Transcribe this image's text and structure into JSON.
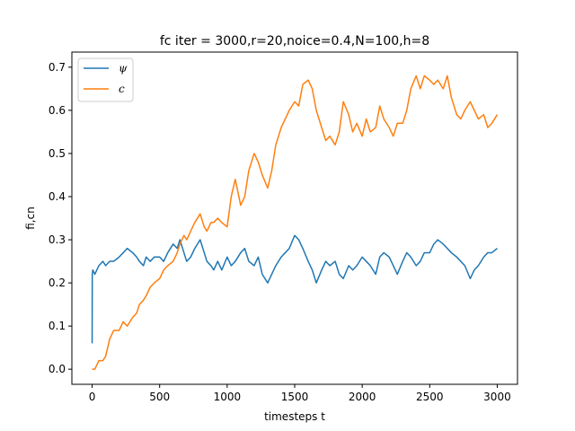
{
  "chart_data": {
    "type": "line",
    "title": "fc iter = 3000,r=20,noice=0.4,N=100,h=8",
    "xlabel": "timesteps t",
    "ylabel": "fi,cn",
    "xlim": [
      -150,
      3150
    ],
    "ylim": [
      -0.035,
      0.735
    ],
    "xticks": [
      0,
      500,
      1000,
      1500,
      2000,
      2500,
      3000
    ],
    "yticks": [
      0.0,
      0.1,
      0.2,
      0.3,
      0.4,
      0.5,
      0.6,
      0.7
    ],
    "xtick_labels": [
      "0",
      "500",
      "1000",
      "1500",
      "2000",
      "2500",
      "3000"
    ],
    "ytick_labels": [
      "0.0",
      "0.1",
      "0.2",
      "0.3",
      "0.4",
      "0.5",
      "0.6",
      "0.7"
    ],
    "grid": false,
    "legend_position": "top-left",
    "series": [
      {
        "name": "ψ",
        "color": "#1f77b4",
        "x": [
          0,
          1,
          5,
          20,
          50,
          80,
          100,
          130,
          160,
          200,
          230,
          260,
          300,
          330,
          350,
          380,
          400,
          430,
          460,
          500,
          530,
          560,
          600,
          630,
          650,
          680,
          700,
          730,
          760,
          800,
          830,
          850,
          880,
          900,
          930,
          960,
          1000,
          1030,
          1060,
          1100,
          1130,
          1160,
          1200,
          1230,
          1260,
          1300,
          1330,
          1360,
          1400,
          1430,
          1460,
          1500,
          1530,
          1560,
          1600,
          1630,
          1660,
          1700,
          1730,
          1760,
          1800,
          1830,
          1860,
          1900,
          1930,
          1960,
          2000,
          2030,
          2060,
          2100,
          2130,
          2160,
          2200,
          2230,
          2260,
          2300,
          2330,
          2360,
          2400,
          2430,
          2460,
          2500,
          2530,
          2560,
          2600,
          2630,
          2660,
          2700,
          2730,
          2760,
          2800,
          2830,
          2860,
          2900,
          2930,
          2960,
          3000
        ],
        "y": [
          0.06,
          0.22,
          0.23,
          0.22,
          0.24,
          0.25,
          0.24,
          0.25,
          0.25,
          0.26,
          0.27,
          0.28,
          0.27,
          0.26,
          0.25,
          0.24,
          0.26,
          0.25,
          0.26,
          0.26,
          0.25,
          0.27,
          0.29,
          0.28,
          0.3,
          0.27,
          0.25,
          0.26,
          0.28,
          0.3,
          0.27,
          0.25,
          0.24,
          0.23,
          0.25,
          0.23,
          0.26,
          0.24,
          0.25,
          0.27,
          0.28,
          0.25,
          0.24,
          0.26,
          0.22,
          0.2,
          0.22,
          0.24,
          0.26,
          0.27,
          0.28,
          0.31,
          0.3,
          0.28,
          0.25,
          0.23,
          0.2,
          0.23,
          0.25,
          0.24,
          0.25,
          0.22,
          0.21,
          0.24,
          0.23,
          0.24,
          0.26,
          0.25,
          0.24,
          0.22,
          0.26,
          0.27,
          0.26,
          0.24,
          0.22,
          0.25,
          0.27,
          0.26,
          0.24,
          0.25,
          0.27,
          0.27,
          0.29,
          0.3,
          0.29,
          0.28,
          0.27,
          0.26,
          0.25,
          0.24,
          0.21,
          0.23,
          0.24,
          0.26,
          0.27,
          0.27,
          0.28
        ]
      },
      {
        "name": "c",
        "color": "#ff7f0e",
        "x": [
          0,
          20,
          50,
          80,
          100,
          130,
          160,
          200,
          230,
          260,
          300,
          330,
          350,
          380,
          400,
          430,
          460,
          500,
          530,
          560,
          600,
          630,
          650,
          680,
          700,
          730,
          760,
          800,
          830,
          850,
          880,
          900,
          930,
          960,
          1000,
          1030,
          1060,
          1100,
          1130,
          1160,
          1200,
          1230,
          1260,
          1300,
          1330,
          1360,
          1400,
          1430,
          1460,
          1500,
          1530,
          1560,
          1600,
          1630,
          1660,
          1700,
          1730,
          1760,
          1800,
          1830,
          1860,
          1900,
          1930,
          1960,
          2000,
          2030,
          2060,
          2100,
          2130,
          2160,
          2200,
          2230,
          2260,
          2300,
          2330,
          2360,
          2400,
          2430,
          2460,
          2500,
          2530,
          2560,
          2600,
          2630,
          2660,
          2700,
          2730,
          2760,
          2800,
          2830,
          2860,
          2900,
          2930,
          2960,
          3000
        ],
        "y": [
          0.0,
          0.0,
          0.02,
          0.02,
          0.03,
          0.07,
          0.09,
          0.09,
          0.11,
          0.1,
          0.12,
          0.13,
          0.15,
          0.16,
          0.17,
          0.19,
          0.2,
          0.21,
          0.23,
          0.24,
          0.25,
          0.27,
          0.29,
          0.31,
          0.3,
          0.32,
          0.34,
          0.36,
          0.33,
          0.32,
          0.34,
          0.34,
          0.35,
          0.34,
          0.33,
          0.4,
          0.44,
          0.38,
          0.4,
          0.46,
          0.5,
          0.48,
          0.45,
          0.42,
          0.46,
          0.52,
          0.56,
          0.58,
          0.6,
          0.62,
          0.61,
          0.66,
          0.67,
          0.65,
          0.6,
          0.56,
          0.53,
          0.54,
          0.52,
          0.55,
          0.62,
          0.59,
          0.55,
          0.57,
          0.54,
          0.58,
          0.55,
          0.56,
          0.61,
          0.58,
          0.56,
          0.54,
          0.57,
          0.57,
          0.6,
          0.65,
          0.68,
          0.65,
          0.68,
          0.67,
          0.66,
          0.67,
          0.65,
          0.68,
          0.63,
          0.59,
          0.58,
          0.6,
          0.62,
          0.6,
          0.58,
          0.59,
          0.56,
          0.57,
          0.59
        ]
      }
    ]
  }
}
